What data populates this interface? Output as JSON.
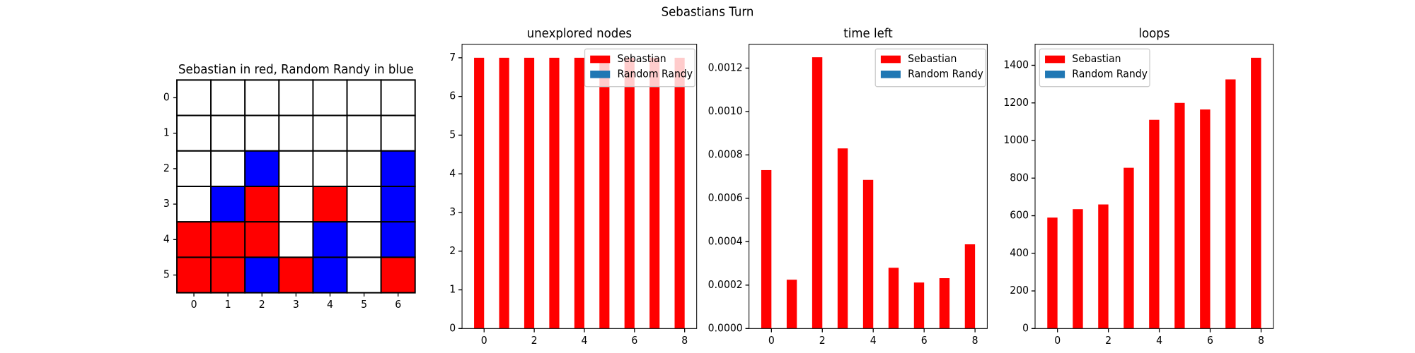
{
  "title": "Sebastians Turn",
  "chart_data": [
    {
      "type": "heatmap",
      "title": "Sebastian in red, Random Randy in blue",
      "values": [
        [
          0,
          0,
          0,
          0,
          0,
          0,
          0
        ],
        [
          0,
          0,
          0,
          0,
          0,
          0,
          0
        ],
        [
          0,
          0,
          2,
          0,
          0,
          0,
          2
        ],
        [
          0,
          2,
          1,
          0,
          1,
          0,
          2
        ],
        [
          1,
          1,
          1,
          0,
          2,
          0,
          2
        ],
        [
          1,
          1,
          2,
          1,
          2,
          0,
          1
        ]
      ],
      "colors": [
        "#ffffff",
        "#ff0000",
        "#0000ff"
      ],
      "xticks": [
        0,
        1,
        2,
        3,
        4,
        5,
        6
      ],
      "yticks": [
        0,
        1,
        2,
        3,
        4,
        5
      ]
    },
    {
      "type": "bar",
      "title": "unexplored nodes",
      "x": [
        0,
        1,
        2,
        3,
        4,
        5,
        6,
        7,
        8
      ],
      "series": [
        {
          "name": "Sebastian",
          "color": "#ff0000",
          "values": [
            7,
            7,
            7,
            7,
            7,
            7,
            7,
            7,
            7
          ]
        },
        {
          "name": "Random Randy",
          "color": "#1f77b4",
          "values": [
            0,
            0,
            0,
            0,
            0,
            0,
            0,
            0,
            0
          ]
        }
      ],
      "xlim": [
        -0.88,
        8.48
      ],
      "xticks": [
        0,
        2,
        4,
        6,
        8
      ],
      "ylim": [
        0,
        7.35
      ],
      "yticks": [
        0,
        1,
        2,
        3,
        4,
        5,
        6,
        7
      ],
      "legend": "upper right"
    },
    {
      "type": "bar",
      "title": "time left",
      "x": [
        0,
        1,
        2,
        3,
        4,
        5,
        6,
        7,
        8
      ],
      "series": [
        {
          "name": "Sebastian",
          "color": "#ff0000",
          "values": [
            0.00073,
            0.000225,
            0.00125,
            0.00083,
            0.000685,
            0.00028,
            0.000212,
            0.000232,
            0.000388
          ]
        },
        {
          "name": "Random Randy",
          "color": "#1f77b4",
          "values": [
            0,
            0,
            0,
            0,
            0,
            0,
            0,
            0,
            0
          ]
        }
      ],
      "xlim": [
        -0.88,
        8.48
      ],
      "xticks": [
        0,
        2,
        4,
        6,
        8
      ],
      "ylim": [
        0,
        0.00131
      ],
      "yticks": [
        {
          "value": 0,
          "label": "0.0000"
        },
        {
          "value": 0.0002,
          "label": "0.0002"
        },
        {
          "value": 0.0004,
          "label": "0.0004"
        },
        {
          "value": 0.0006,
          "label": "0.0006"
        },
        {
          "value": 0.0008,
          "label": "0.0008"
        },
        {
          "value": 0.001,
          "label": "0.0010"
        },
        {
          "value": 0.0012,
          "label": "0.0012"
        }
      ],
      "legend": "upper right"
    },
    {
      "type": "bar",
      "title": "loops",
      "x": [
        0,
        1,
        2,
        3,
        4,
        5,
        6,
        7,
        8
      ],
      "series": [
        {
          "name": "Sebastian",
          "color": "#ff0000",
          "values": [
            590,
            635,
            660,
            855,
            1110,
            1200,
            1165,
            1325,
            1440
          ]
        },
        {
          "name": "Random Randy",
          "color": "#1f77b4",
          "values": [
            0,
            0,
            0,
            0,
            0,
            0,
            0,
            0,
            0
          ]
        }
      ],
      "xlim": [
        -0.88,
        8.48
      ],
      "xticks": [
        0,
        2,
        4,
        6,
        8
      ],
      "ylim": [
        0,
        1512
      ],
      "yticks": [
        0,
        200,
        400,
        600,
        800,
        1000,
        1200,
        1400
      ],
      "legend": "upper left"
    }
  ]
}
